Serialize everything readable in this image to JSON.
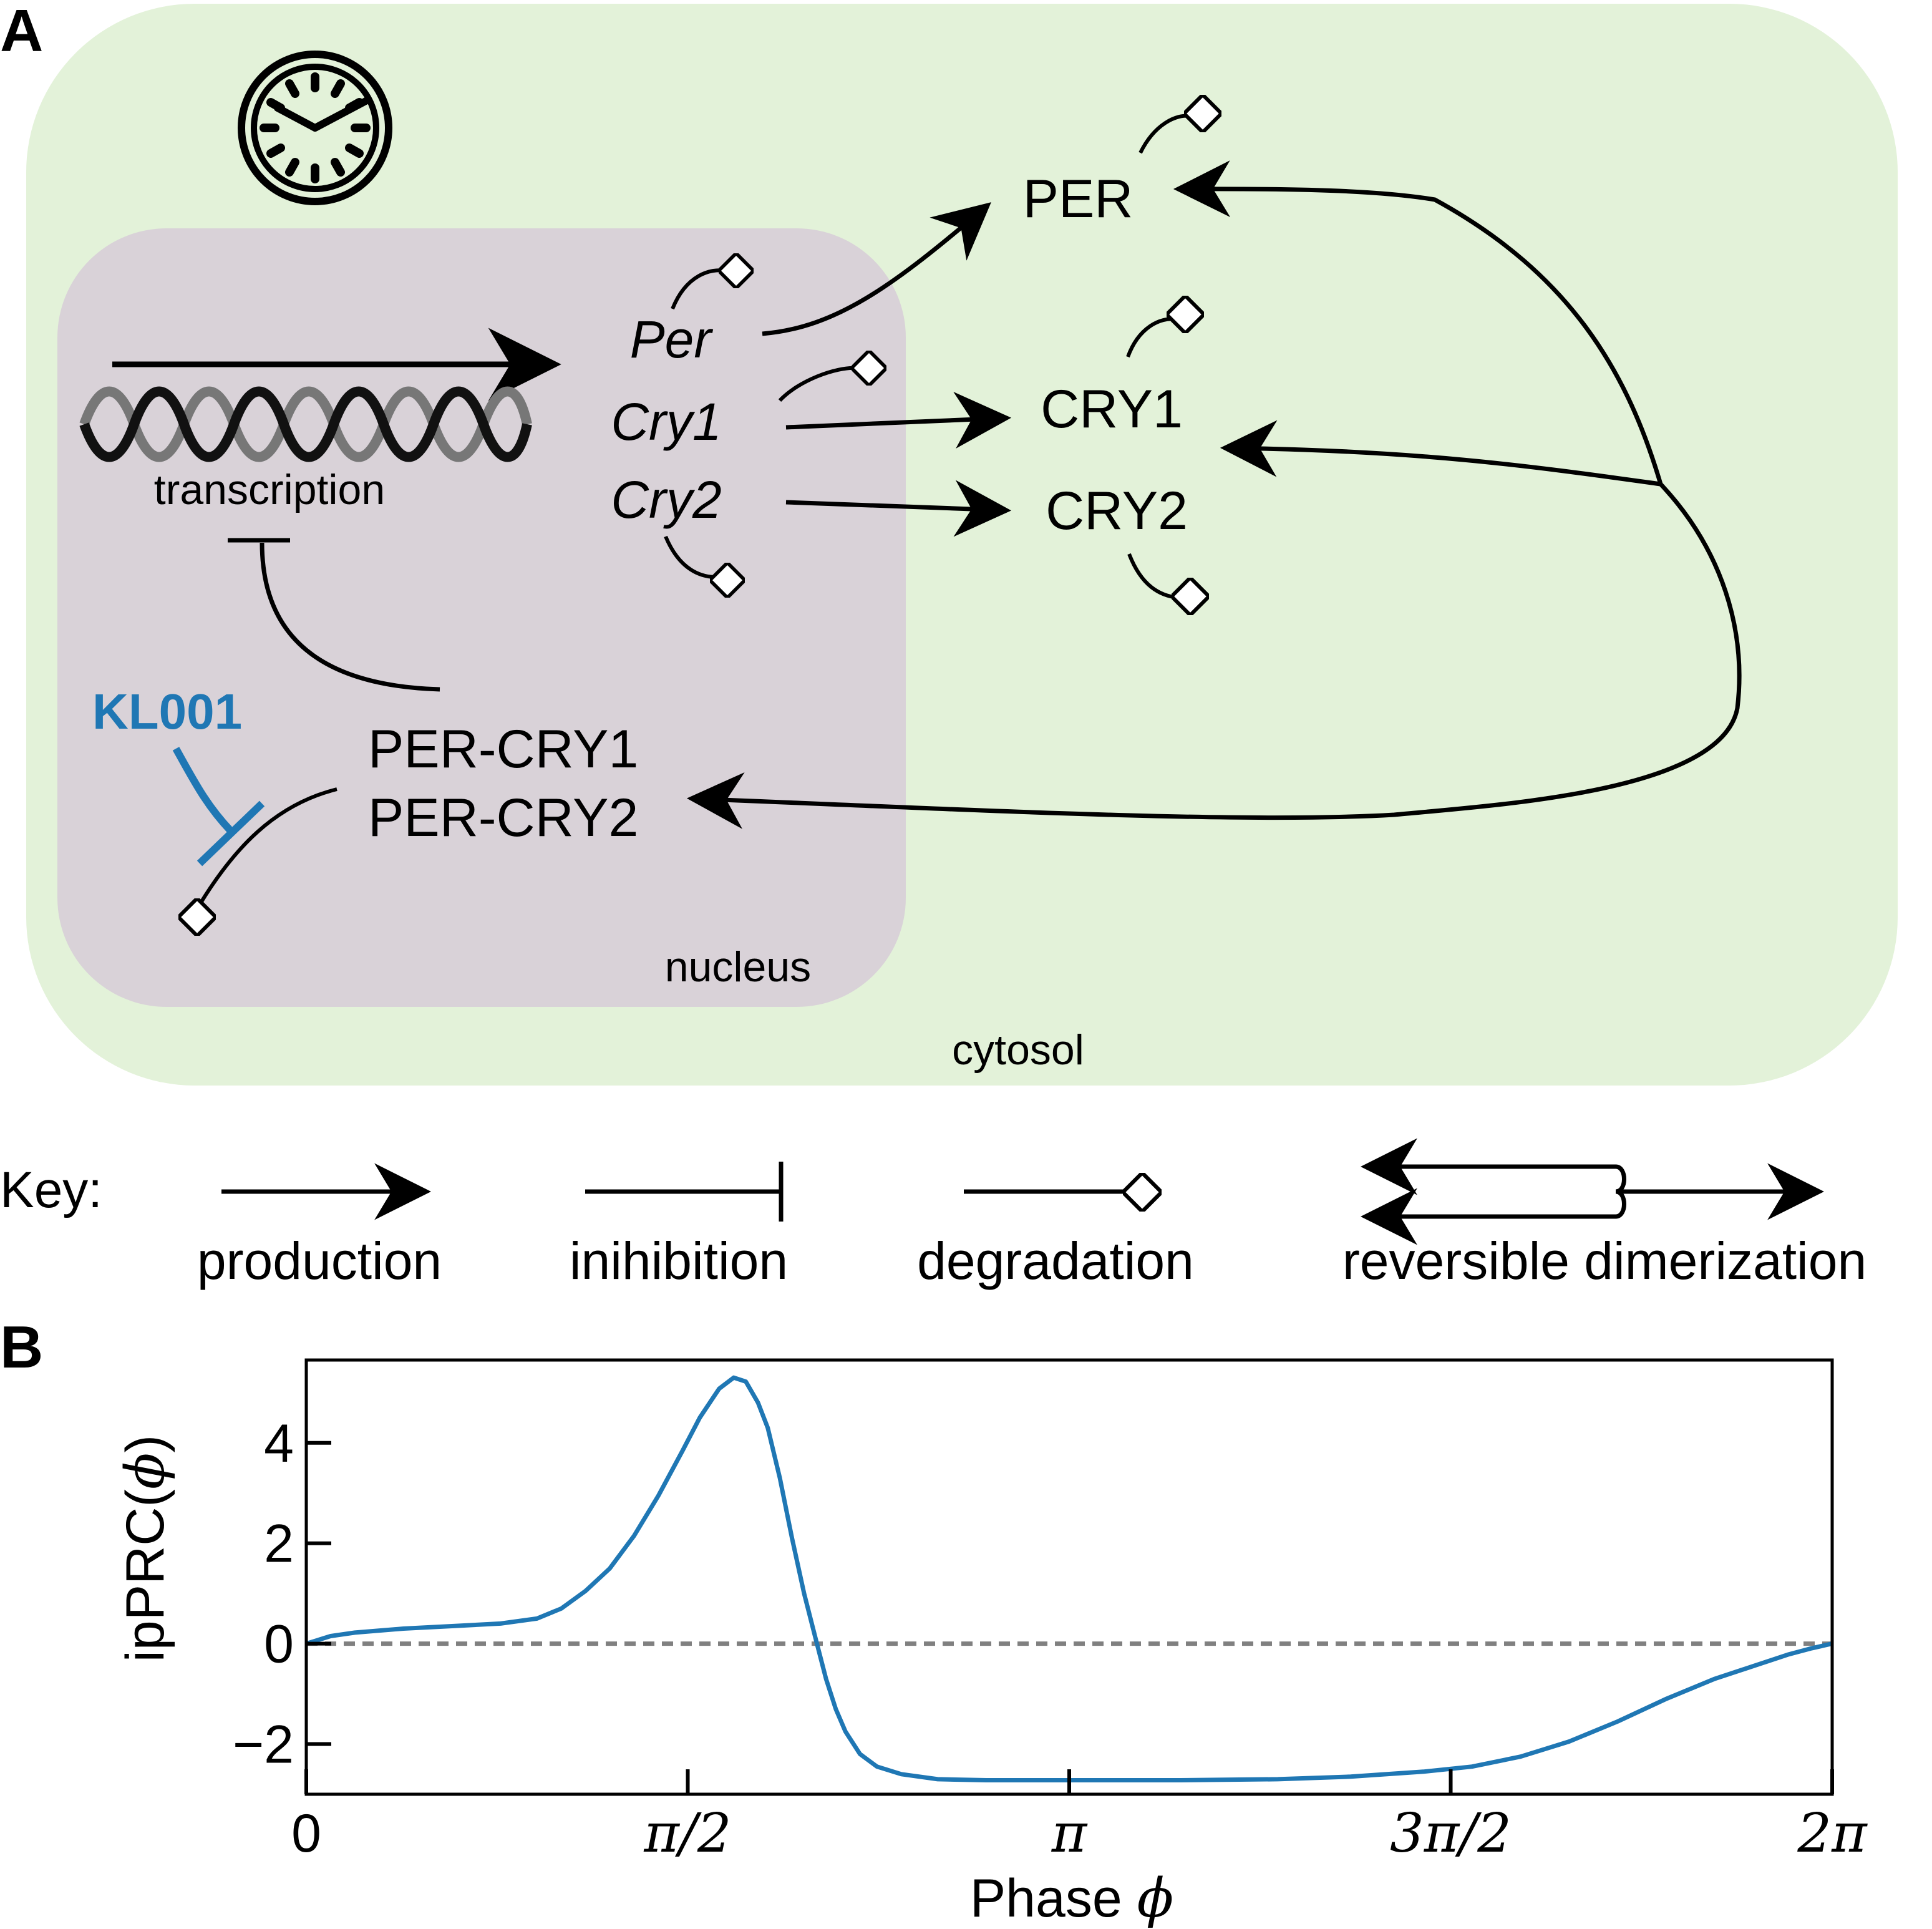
{
  "colors": {
    "cytosol_fill": "#e3f2d9",
    "nucleus_fill": "#d9d2d8",
    "ink": "#000000",
    "accent_blue": "#1f77b4",
    "zero_line": "#808080"
  },
  "panel_a": {
    "label": "A",
    "labels": {
      "per_mrna": "Per",
      "cry1_mrna": "Cry1",
      "cry2_mrna": "Cry2",
      "per_protein": "PER",
      "cry1_protein": "CRY1",
      "cry2_protein": "CRY2",
      "per_cry1": "PER-CRY1",
      "per_cry2": "PER-CRY2",
      "transcription": "transcription",
      "kl001": "KL001",
      "nucleus": "nucleus",
      "cytosol": "cytosol"
    },
    "icons": [
      "clock-icon",
      "dna-helix-icon",
      "degradation-diamond-icon"
    ]
  },
  "key": {
    "title": "Key:",
    "items": [
      {
        "label": "production",
        "symbol": "arrow"
      },
      {
        "label": "inihibition",
        "symbol": "bar"
      },
      {
        "label": "degradation",
        "symbol": "diamond"
      },
      {
        "label": "reversible dimerization",
        "symbol": "double-arrow"
      }
    ]
  },
  "panel_b": {
    "label": "B",
    "ylabel": "ipPRC(",
    "ylabel_sym": "ϕ",
    "ylabel_close": ")",
    "xlabel": "Phase ",
    "xlabel_sym": "ϕ",
    "chart_data": {
      "type": "line",
      "xlabel": "Phase ϕ",
      "ylabel": "ipPRC(ϕ)",
      "xlim": [
        0,
        6.2832
      ],
      "ylim": [
        -3.0,
        5.65
      ],
      "x_ticks": [
        {
          "value": 0,
          "label": "0"
        },
        {
          "value": 1.5708,
          "label": "π/2"
        },
        {
          "value": 3.1416,
          "label": "π"
        },
        {
          "value": 4.7124,
          "label": "3π/2"
        },
        {
          "value": 6.2832,
          "label": "2π"
        }
      ],
      "y_ticks": [
        {
          "value": -2,
          "label": "−2"
        },
        {
          "value": 0,
          "label": "0"
        },
        {
          "value": 2,
          "label": "2"
        },
        {
          "value": 4,
          "label": "4"
        }
      ],
      "reference_line": {
        "y": 0,
        "style": "dashed"
      },
      "series": [
        {
          "color": "#1f77b4",
          "x": [
            0,
            0.1,
            0.2,
            0.4,
            0.6,
            0.8,
            0.95,
            1.05,
            1.15,
            1.25,
            1.35,
            1.45,
            1.55,
            1.62,
            1.7,
            1.76,
            1.81,
            1.86,
            1.9,
            1.95,
            2.0,
            2.05,
            2.1,
            2.14,
            2.18,
            2.22,
            2.28,
            2.35,
            2.45,
            2.6,
            2.8,
            3.0,
            3.2,
            3.6,
            4.0,
            4.3,
            4.6,
            4.8,
            5.0,
            5.2,
            5.4,
            5.6,
            5.8,
            6.0,
            6.1,
            6.2,
            6.2832
          ],
          "values": [
            0.0,
            0.15,
            0.22,
            0.3,
            0.35,
            0.4,
            0.5,
            0.7,
            1.05,
            1.5,
            2.15,
            2.95,
            3.85,
            4.5,
            5.08,
            5.3,
            5.22,
            4.8,
            4.3,
            3.3,
            2.1,
            1.0,
            0.05,
            -0.7,
            -1.3,
            -1.75,
            -2.2,
            -2.45,
            -2.6,
            -2.7,
            -2.72,
            -2.72,
            -2.72,
            -2.72,
            -2.7,
            -2.65,
            -2.55,
            -2.45,
            -2.25,
            -1.95,
            -1.55,
            -1.1,
            -0.7,
            -0.38,
            -0.22,
            -0.09,
            0.0
          ]
        }
      ]
    }
  }
}
